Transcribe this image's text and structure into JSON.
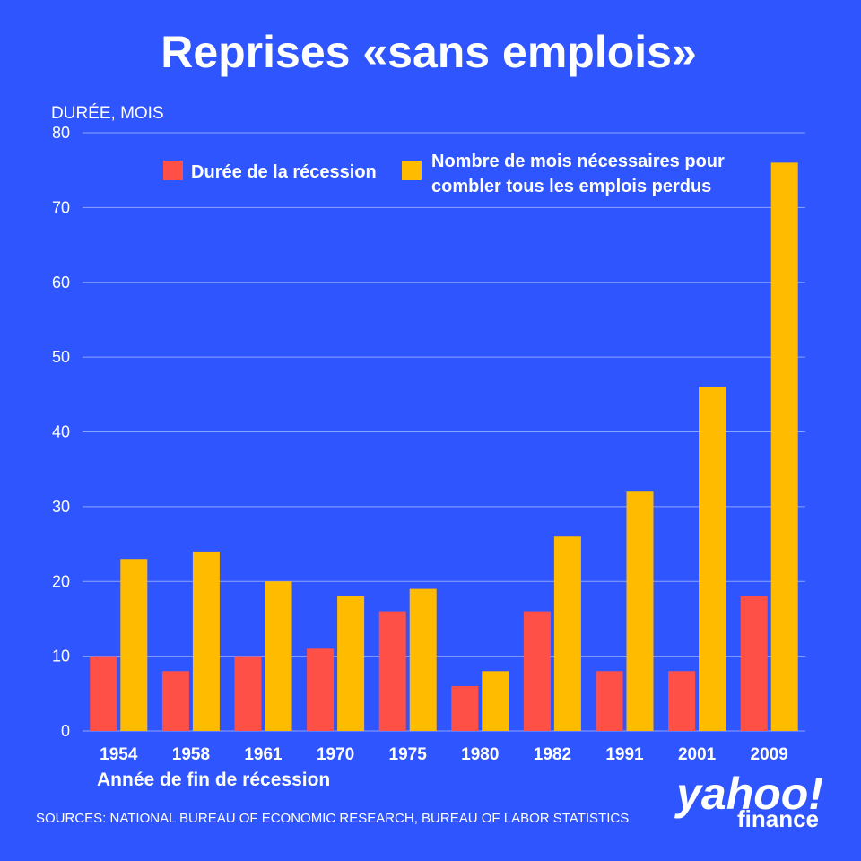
{
  "chart_data": {
    "type": "bar",
    "title": "Reprises «sans emplois»",
    "ylabel": "DURÉE, MOIS",
    "xlabel": "Année de fin de récession",
    "ylim": [
      0,
      80
    ],
    "yticks": [
      0,
      10,
      20,
      30,
      40,
      50,
      60,
      70,
      80
    ],
    "grid": true,
    "legend_position": "top",
    "categories": [
      "1954",
      "1958",
      "1961",
      "1970",
      "1975",
      "1980",
      "1982",
      "1991",
      "2001",
      "2009"
    ],
    "series": [
      {
        "name": "Durée de la récession",
        "color": "#ff5048",
        "values": [
          10,
          8,
          10,
          11,
          16,
          6,
          16,
          8,
          8,
          18
        ]
      },
      {
        "name_lines": [
          "Nombre de mois nécessaires pour",
          "combler tous les emplois perdus"
        ],
        "color": "#ffbb00",
        "values": [
          23,
          24,
          20,
          18,
          19,
          8,
          26,
          32,
          46,
          76
        ]
      }
    ]
  },
  "source": "SOURCES: NATIONAL BUREAU OF ECONOMIC RESEARCH, BUREAU OF LABOR STATISTICS",
  "logo": {
    "line1": "yahoo!",
    "line2": "finance"
  },
  "colors": {
    "background": "#2f55ff",
    "gridline": "#8ea4ff",
    "text": "#ffffff"
  }
}
